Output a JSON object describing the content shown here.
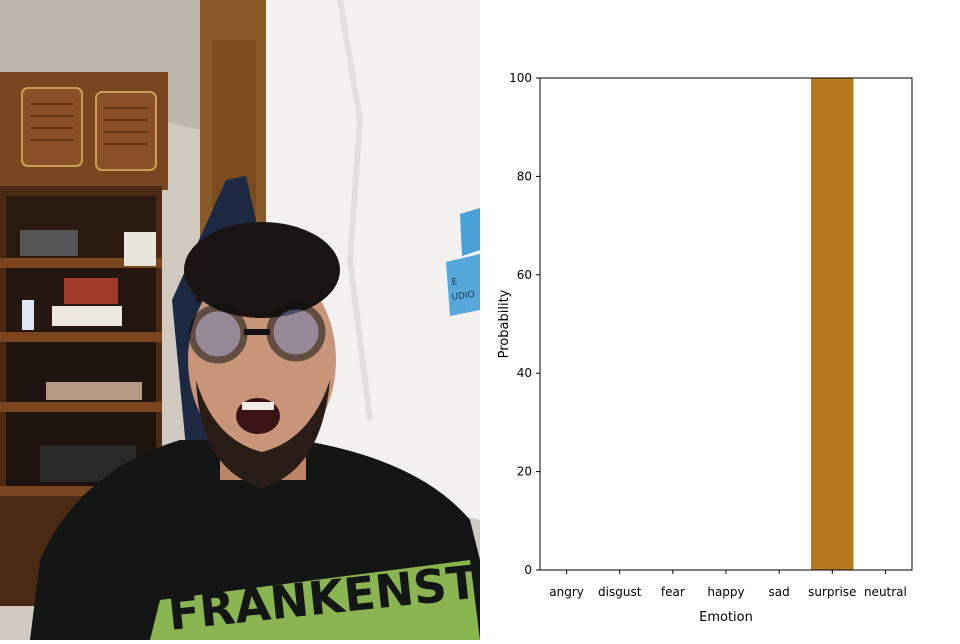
{
  "photo": {
    "sticky_note_text": "E\nUDIO",
    "sweater_text": "FRANKENSTEIN"
  },
  "colors": {
    "bar": "#b8781e",
    "axis": "#000000",
    "background": "#ffffff"
  },
  "chart_data": {
    "type": "bar",
    "categories": [
      "angry",
      "disgust",
      "fear",
      "happy",
      "sad",
      "surprise",
      "neutral"
    ],
    "values": [
      0,
      0,
      0,
      0,
      0,
      100,
      0
    ],
    "xlabel": "Emotion",
    "ylabel": "Probability",
    "ylim": [
      0,
      100
    ],
    "yticks": [
      0,
      20,
      40,
      60,
      80,
      100
    ],
    "grid": false,
    "legend": "none"
  }
}
